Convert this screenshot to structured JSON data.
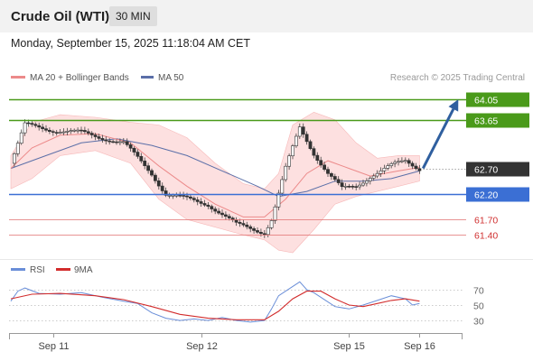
{
  "header": {
    "instrument": "Crude Oil (WTI)",
    "interval": "30 MIN",
    "datetime": "Monday, September 15, 2025 11:18:04 AM CET"
  },
  "legend": {
    "ma20_label": "MA 20 + Bollinger Bands",
    "ma50_label": "MA 50",
    "credit": "Research © 2025 Trading Central",
    "rsi_label": "RSI",
    "rsi_ma_label": "9MA"
  },
  "colors": {
    "resistance": "#4a9a1a",
    "support": "#3b6fd4",
    "level_minor": "#e07070",
    "current": "#333333",
    "arrow": "#2f5f9f",
    "ma20": "#ec8a8a",
    "ma50": "#5b6fa8",
    "band_fill": "#fde0e0",
    "rsi": "#6a8ed8",
    "rsi_ma": "#d22c2c"
  },
  "chart_data": [
    {
      "type": "candlestick",
      "price_range": [
        61.05,
        64.3
      ],
      "time_range_hours": [
        0,
        68
      ],
      "x_ticks": [
        {
          "t": 6,
          "label": "Sep 11"
        },
        {
          "t": 27,
          "label": "Sep 12"
        },
        {
          "t": 48,
          "label": "Sep 15"
        },
        {
          "t": 58,
          "label": "Sep 16"
        }
      ],
      "levels": [
        {
          "value": 64.05,
          "label": "64.05",
          "kind": "resistance"
        },
        {
          "value": 63.65,
          "label": "63.65",
          "kind": "resistance"
        },
        {
          "value": 62.7,
          "label": "62.70",
          "kind": "current"
        },
        {
          "value": 62.2,
          "label": "62.20",
          "kind": "support"
        },
        {
          "value": 61.7,
          "label": "61.70",
          "kind": "minor"
        },
        {
          "value": 61.4,
          "label": "61.40",
          "kind": "minor"
        }
      ],
      "projection": {
        "from_t": 58.5,
        "from_price": 62.7,
        "to_t": 63.5,
        "to_price": 64.05
      },
      "key_prices": [
        {
          "t": 0,
          "price": 62.8
        },
        {
          "t": 2,
          "price": 63.55
        },
        {
          "t": 6,
          "price": 63.45
        },
        {
          "t": 10,
          "price": 63.4
        },
        {
          "t": 16,
          "price": 63.2
        },
        {
          "t": 20,
          "price": 62.6
        },
        {
          "t": 22,
          "price": 62.2
        },
        {
          "t": 28,
          "price": 62.0
        },
        {
          "t": 32,
          "price": 61.6
        },
        {
          "t": 36,
          "price": 61.45
        },
        {
          "t": 37,
          "price": 61.7
        },
        {
          "t": 39,
          "price": 62.7
        },
        {
          "t": 41,
          "price": 63.5
        },
        {
          "t": 43,
          "price": 63.0
        },
        {
          "t": 45,
          "price": 62.6
        },
        {
          "t": 47,
          "price": 62.3
        },
        {
          "t": 49,
          "price": 62.35
        },
        {
          "t": 51,
          "price": 62.55
        },
        {
          "t": 54,
          "price": 62.75
        },
        {
          "t": 56,
          "price": 62.85
        },
        {
          "t": 58,
          "price": 62.7
        }
      ],
      "ma20": [
        {
          "t": 0,
          "price": 62.7
        },
        {
          "t": 3,
          "price": 63.1
        },
        {
          "t": 7,
          "price": 63.35
        },
        {
          "t": 12,
          "price": 63.38
        },
        {
          "t": 17,
          "price": 63.2
        },
        {
          "t": 21,
          "price": 62.75
        },
        {
          "t": 25,
          "price": 62.35
        },
        {
          "t": 29,
          "price": 62.0
        },
        {
          "t": 33,
          "price": 61.75
        },
        {
          "t": 36,
          "price": 61.75
        },
        {
          "t": 39,
          "price": 62.1
        },
        {
          "t": 42,
          "price": 62.6
        },
        {
          "t": 45,
          "price": 62.85
        },
        {
          "t": 48,
          "price": 62.7
        },
        {
          "t": 51,
          "price": 62.55
        },
        {
          "t": 55,
          "price": 62.65
        },
        {
          "t": 58,
          "price": 62.72
        }
      ],
      "ma50": [
        {
          "t": 0,
          "price": 62.7
        },
        {
          "t": 5,
          "price": 62.95
        },
        {
          "t": 10,
          "price": 63.2
        },
        {
          "t": 15,
          "price": 63.28
        },
        {
          "t": 20,
          "price": 63.15
        },
        {
          "t": 25,
          "price": 62.95
        },
        {
          "t": 30,
          "price": 62.65
        },
        {
          "t": 35,
          "price": 62.35
        },
        {
          "t": 38,
          "price": 62.15
        },
        {
          "t": 42,
          "price": 62.25
        },
        {
          "t": 46,
          "price": 62.45
        },
        {
          "t": 50,
          "price": 62.45
        },
        {
          "t": 54,
          "price": 62.5
        },
        {
          "t": 58,
          "price": 62.65
        }
      ],
      "bb_upper": [
        {
          "t": 0,
          "price": 62.95
        },
        {
          "t": 3,
          "price": 63.6
        },
        {
          "t": 7,
          "price": 63.75
        },
        {
          "t": 12,
          "price": 63.7
        },
        {
          "t": 17,
          "price": 63.6
        },
        {
          "t": 21,
          "price": 63.55
        },
        {
          "t": 25,
          "price": 63.3
        },
        {
          "t": 29,
          "price": 62.8
        },
        {
          "t": 33,
          "price": 62.4
        },
        {
          "t": 36,
          "price": 62.3
        },
        {
          "t": 38,
          "price": 62.6
        },
        {
          "t": 40,
          "price": 63.55
        },
        {
          "t": 43,
          "price": 63.8
        },
        {
          "t": 46,
          "price": 63.65
        },
        {
          "t": 49,
          "price": 63.2
        },
        {
          "t": 52,
          "price": 62.9
        },
        {
          "t": 55,
          "price": 62.95
        },
        {
          "t": 58,
          "price": 62.95
        }
      ],
      "bb_lower": [
        {
          "t": 0,
          "price": 62.3
        },
        {
          "t": 3,
          "price": 62.5
        },
        {
          "t": 7,
          "price": 62.95
        },
        {
          "t": 12,
          "price": 63.05
        },
        {
          "t": 17,
          "price": 62.8
        },
        {
          "t": 21,
          "price": 62.1
        },
        {
          "t": 25,
          "price": 61.7
        },
        {
          "t": 29,
          "price": 61.55
        },
        {
          "t": 33,
          "price": 61.4
        },
        {
          "t": 36,
          "price": 61.3
        },
        {
          "t": 38,
          "price": 61.1
        },
        {
          "t": 40,
          "price": 61.05
        },
        {
          "t": 43,
          "price": 61.5
        },
        {
          "t": 46,
          "price": 62.0
        },
        {
          "t": 49,
          "price": 62.15
        },
        {
          "t": 52,
          "price": 62.25
        },
        {
          "t": 55,
          "price": 62.35
        },
        {
          "t": 58,
          "price": 62.45
        }
      ]
    },
    {
      "type": "line",
      "indicator": "RSI",
      "ylim": [
        15,
        85
      ],
      "reference_lines": [
        70,
        50,
        30
      ],
      "y_ticks": [
        "70",
        "50",
        "30"
      ],
      "rsi": [
        {
          "t": 0,
          "v": 55
        },
        {
          "t": 1,
          "v": 68
        },
        {
          "t": 2,
          "v": 72
        },
        {
          "t": 4,
          "v": 65
        },
        {
          "t": 7,
          "v": 64
        },
        {
          "t": 10,
          "v": 66
        },
        {
          "t": 13,
          "v": 60
        },
        {
          "t": 16,
          "v": 55
        },
        {
          "t": 18,
          "v": 52
        },
        {
          "t": 20,
          "v": 40
        },
        {
          "t": 22,
          "v": 33
        },
        {
          "t": 24,
          "v": 30
        },
        {
          "t": 26,
          "v": 32
        },
        {
          "t": 28,
          "v": 30
        },
        {
          "t": 30,
          "v": 34
        },
        {
          "t": 32,
          "v": 30
        },
        {
          "t": 34,
          "v": 28
        },
        {
          "t": 36,
          "v": 30
        },
        {
          "t": 37,
          "v": 45
        },
        {
          "t": 38,
          "v": 62
        },
        {
          "t": 40,
          "v": 74
        },
        {
          "t": 41,
          "v": 80
        },
        {
          "t": 42,
          "v": 70
        },
        {
          "t": 43,
          "v": 66
        },
        {
          "t": 44,
          "v": 60
        },
        {
          "t": 46,
          "v": 48
        },
        {
          "t": 48,
          "v": 45
        },
        {
          "t": 50,
          "v": 50
        },
        {
          "t": 52,
          "v": 56
        },
        {
          "t": 54,
          "v": 62
        },
        {
          "t": 56,
          "v": 58
        },
        {
          "t": 57,
          "v": 50
        },
        {
          "t": 58,
          "v": 52
        }
      ],
      "rsi_ma": [
        {
          "t": 0,
          "v": 58
        },
        {
          "t": 3,
          "v": 64
        },
        {
          "t": 7,
          "v": 65
        },
        {
          "t": 12,
          "v": 62
        },
        {
          "t": 16,
          "v": 57
        },
        {
          "t": 20,
          "v": 48
        },
        {
          "t": 24,
          "v": 38
        },
        {
          "t": 28,
          "v": 33
        },
        {
          "t": 32,
          "v": 31
        },
        {
          "t": 36,
          "v": 31
        },
        {
          "t": 38,
          "v": 42
        },
        {
          "t": 40,
          "v": 58
        },
        {
          "t": 42,
          "v": 68
        },
        {
          "t": 44,
          "v": 68
        },
        {
          "t": 46,
          "v": 58
        },
        {
          "t": 48,
          "v": 50
        },
        {
          "t": 50,
          "v": 48
        },
        {
          "t": 52,
          "v": 52
        },
        {
          "t": 54,
          "v": 56
        },
        {
          "t": 56,
          "v": 58
        },
        {
          "t": 58,
          "v": 55
        }
      ]
    }
  ]
}
